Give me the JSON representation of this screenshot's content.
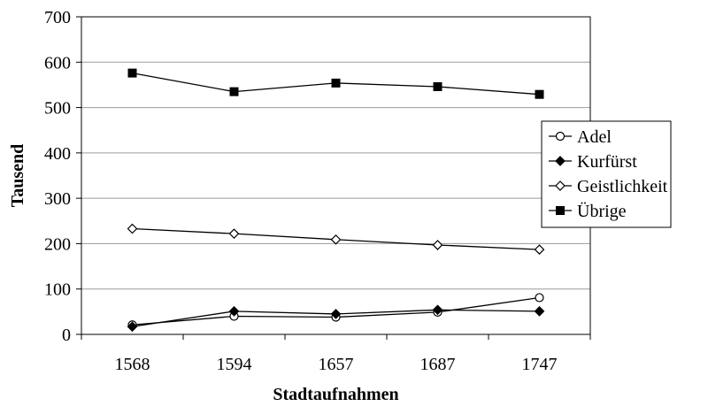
{
  "chart_data": {
    "type": "line",
    "title": "",
    "xlabel": "Stadtaufnahmen",
    "ylabel": "Tausend",
    "categories": [
      "1568",
      "1594",
      "1657",
      "1687",
      "1747"
    ],
    "ylim": [
      0,
      700
    ],
    "yticks": [
      0,
      100,
      200,
      300,
      400,
      500,
      600,
      700
    ],
    "grid": "horizontal",
    "legend_position": "right",
    "series": [
      {
        "name": "Adel",
        "marker": "open-circle",
        "color": "#000000",
        "values": [
          21,
          40,
          38,
          49,
          81
        ]
      },
      {
        "name": "Kurfürst",
        "marker": "filled-diamond",
        "color": "#000000",
        "values": [
          17,
          51,
          45,
          54,
          51
        ]
      },
      {
        "name": "Geistlichkeit",
        "marker": "open-diamond",
        "color": "#000000",
        "values": [
          233,
          222,
          209,
          197,
          187
        ]
      },
      {
        "name": "Übrige",
        "marker": "filled-square",
        "color": "#000000",
        "values": [
          576,
          535,
          554,
          546,
          529
        ]
      }
    ]
  }
}
